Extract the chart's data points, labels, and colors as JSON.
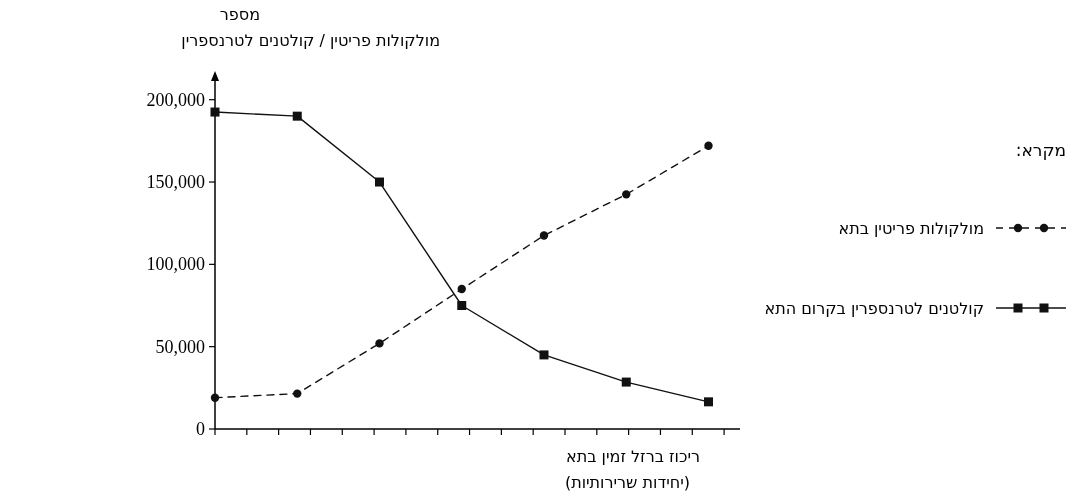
{
  "chart_data": {
    "type": "line",
    "ylabel": "מספר\nמולקולות פריטין / קולטנים לטרנספרין",
    "xlabel": "ריכוז ברזל זמין בתא\n(יחידות שרירותיות)",
    "legend_title": "מקרא:",
    "legend": "right",
    "tick_labels": "y",
    "categories": [
      null,
      null,
      null,
      null,
      null,
      null,
      null
    ],
    "ylim": [
      0,
      215000
    ],
    "yticks": [
      {
        "value": 0,
        "label": "0"
      },
      {
        "value": 50000,
        "label": "50,000"
      },
      {
        "value": 100000,
        "label": "100,000"
      },
      {
        "value": 150000,
        "label": "150,000"
      },
      {
        "value": 200000,
        "label": "200,000"
      }
    ],
    "series": [
      {
        "name": "מולקולות פריטין בתא",
        "color": "#111111",
        "marker": "circle",
        "line_style": "dashed",
        "values": [
          19000,
          21500,
          52000,
          85000,
          117500,
          142500,
          172000
        ]
      },
      {
        "name": "קולטנים לטרנספרין בקרום התא",
        "color": "#111111",
        "marker": "square",
        "line_style": "solid",
        "values": [
          192500,
          190000,
          150000,
          75000,
          45000,
          28500,
          16500
        ]
      }
    ]
  }
}
